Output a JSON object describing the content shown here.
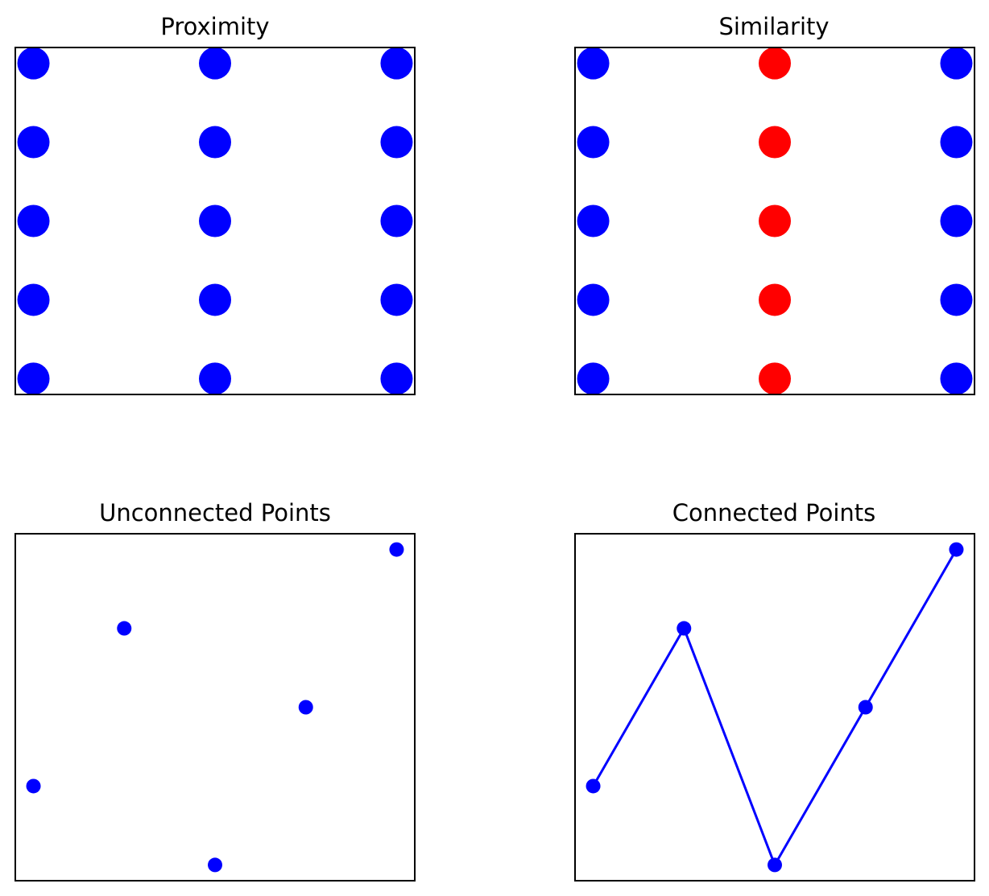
{
  "chart_data": [
    {
      "type": "scatter",
      "title": "Proximity",
      "xlim": [
        -0.1,
        2.1
      ],
      "ylim": [
        -0.2,
        4.2
      ],
      "grid": false,
      "marker": "large",
      "points": [
        {
          "x": 0,
          "y": 0,
          "color": "#0000ff"
        },
        {
          "x": 0,
          "y": 1,
          "color": "#0000ff"
        },
        {
          "x": 0,
          "y": 2,
          "color": "#0000ff"
        },
        {
          "x": 0,
          "y": 3,
          "color": "#0000ff"
        },
        {
          "x": 0,
          "y": 4,
          "color": "#0000ff"
        },
        {
          "x": 1,
          "y": 0,
          "color": "#0000ff"
        },
        {
          "x": 1,
          "y": 1,
          "color": "#0000ff"
        },
        {
          "x": 1,
          "y": 2,
          "color": "#0000ff"
        },
        {
          "x": 1,
          "y": 3,
          "color": "#0000ff"
        },
        {
          "x": 1,
          "y": 4,
          "color": "#0000ff"
        },
        {
          "x": 2,
          "y": 0,
          "color": "#0000ff"
        },
        {
          "x": 2,
          "y": 1,
          "color": "#0000ff"
        },
        {
          "x": 2,
          "y": 2,
          "color": "#0000ff"
        },
        {
          "x": 2,
          "y": 3,
          "color": "#0000ff"
        },
        {
          "x": 2,
          "y": 4,
          "color": "#0000ff"
        }
      ]
    },
    {
      "type": "scatter",
      "title": "Similarity",
      "xlim": [
        -0.1,
        2.1
      ],
      "ylim": [
        -0.2,
        4.2
      ],
      "grid": false,
      "marker": "large",
      "points": [
        {
          "x": 0,
          "y": 0,
          "color": "#0000ff"
        },
        {
          "x": 0,
          "y": 1,
          "color": "#0000ff"
        },
        {
          "x": 0,
          "y": 2,
          "color": "#0000ff"
        },
        {
          "x": 0,
          "y": 3,
          "color": "#0000ff"
        },
        {
          "x": 0,
          "y": 4,
          "color": "#0000ff"
        },
        {
          "x": 1,
          "y": 0,
          "color": "#ff0000"
        },
        {
          "x": 1,
          "y": 1,
          "color": "#ff0000"
        },
        {
          "x": 1,
          "y": 2,
          "color": "#ff0000"
        },
        {
          "x": 1,
          "y": 3,
          "color": "#ff0000"
        },
        {
          "x": 1,
          "y": 4,
          "color": "#ff0000"
        },
        {
          "x": 2,
          "y": 0,
          "color": "#0000ff"
        },
        {
          "x": 2,
          "y": 1,
          "color": "#0000ff"
        },
        {
          "x": 2,
          "y": 2,
          "color": "#0000ff"
        },
        {
          "x": 2,
          "y": 3,
          "color": "#0000ff"
        },
        {
          "x": 2,
          "y": 4,
          "color": "#0000ff"
        }
      ]
    },
    {
      "type": "scatter",
      "title": "Unconnected Points",
      "xlim": [
        -0.2,
        4.2
      ],
      "ylim": [
        -0.2,
        4.2
      ],
      "grid": false,
      "marker": "small",
      "points": [
        {
          "x": 0,
          "y": 1,
          "color": "#0000ff"
        },
        {
          "x": 1,
          "y": 3,
          "color": "#0000ff"
        },
        {
          "x": 2,
          "y": 0,
          "color": "#0000ff"
        },
        {
          "x": 3,
          "y": 2,
          "color": "#0000ff"
        },
        {
          "x": 4,
          "y": 4,
          "color": "#0000ff"
        }
      ]
    },
    {
      "type": "line",
      "title": "Connected Points",
      "xlim": [
        -0.2,
        4.2
      ],
      "ylim": [
        -0.2,
        4.2
      ],
      "grid": false,
      "marker": "small",
      "line_color": "#0000ff",
      "points": [
        {
          "x": 0,
          "y": 1,
          "color": "#0000ff"
        },
        {
          "x": 1,
          "y": 3,
          "color": "#0000ff"
        },
        {
          "x": 2,
          "y": 0,
          "color": "#0000ff"
        },
        {
          "x": 3,
          "y": 2,
          "color": "#0000ff"
        },
        {
          "x": 4,
          "y": 4,
          "color": "#0000ff"
        }
      ]
    }
  ]
}
